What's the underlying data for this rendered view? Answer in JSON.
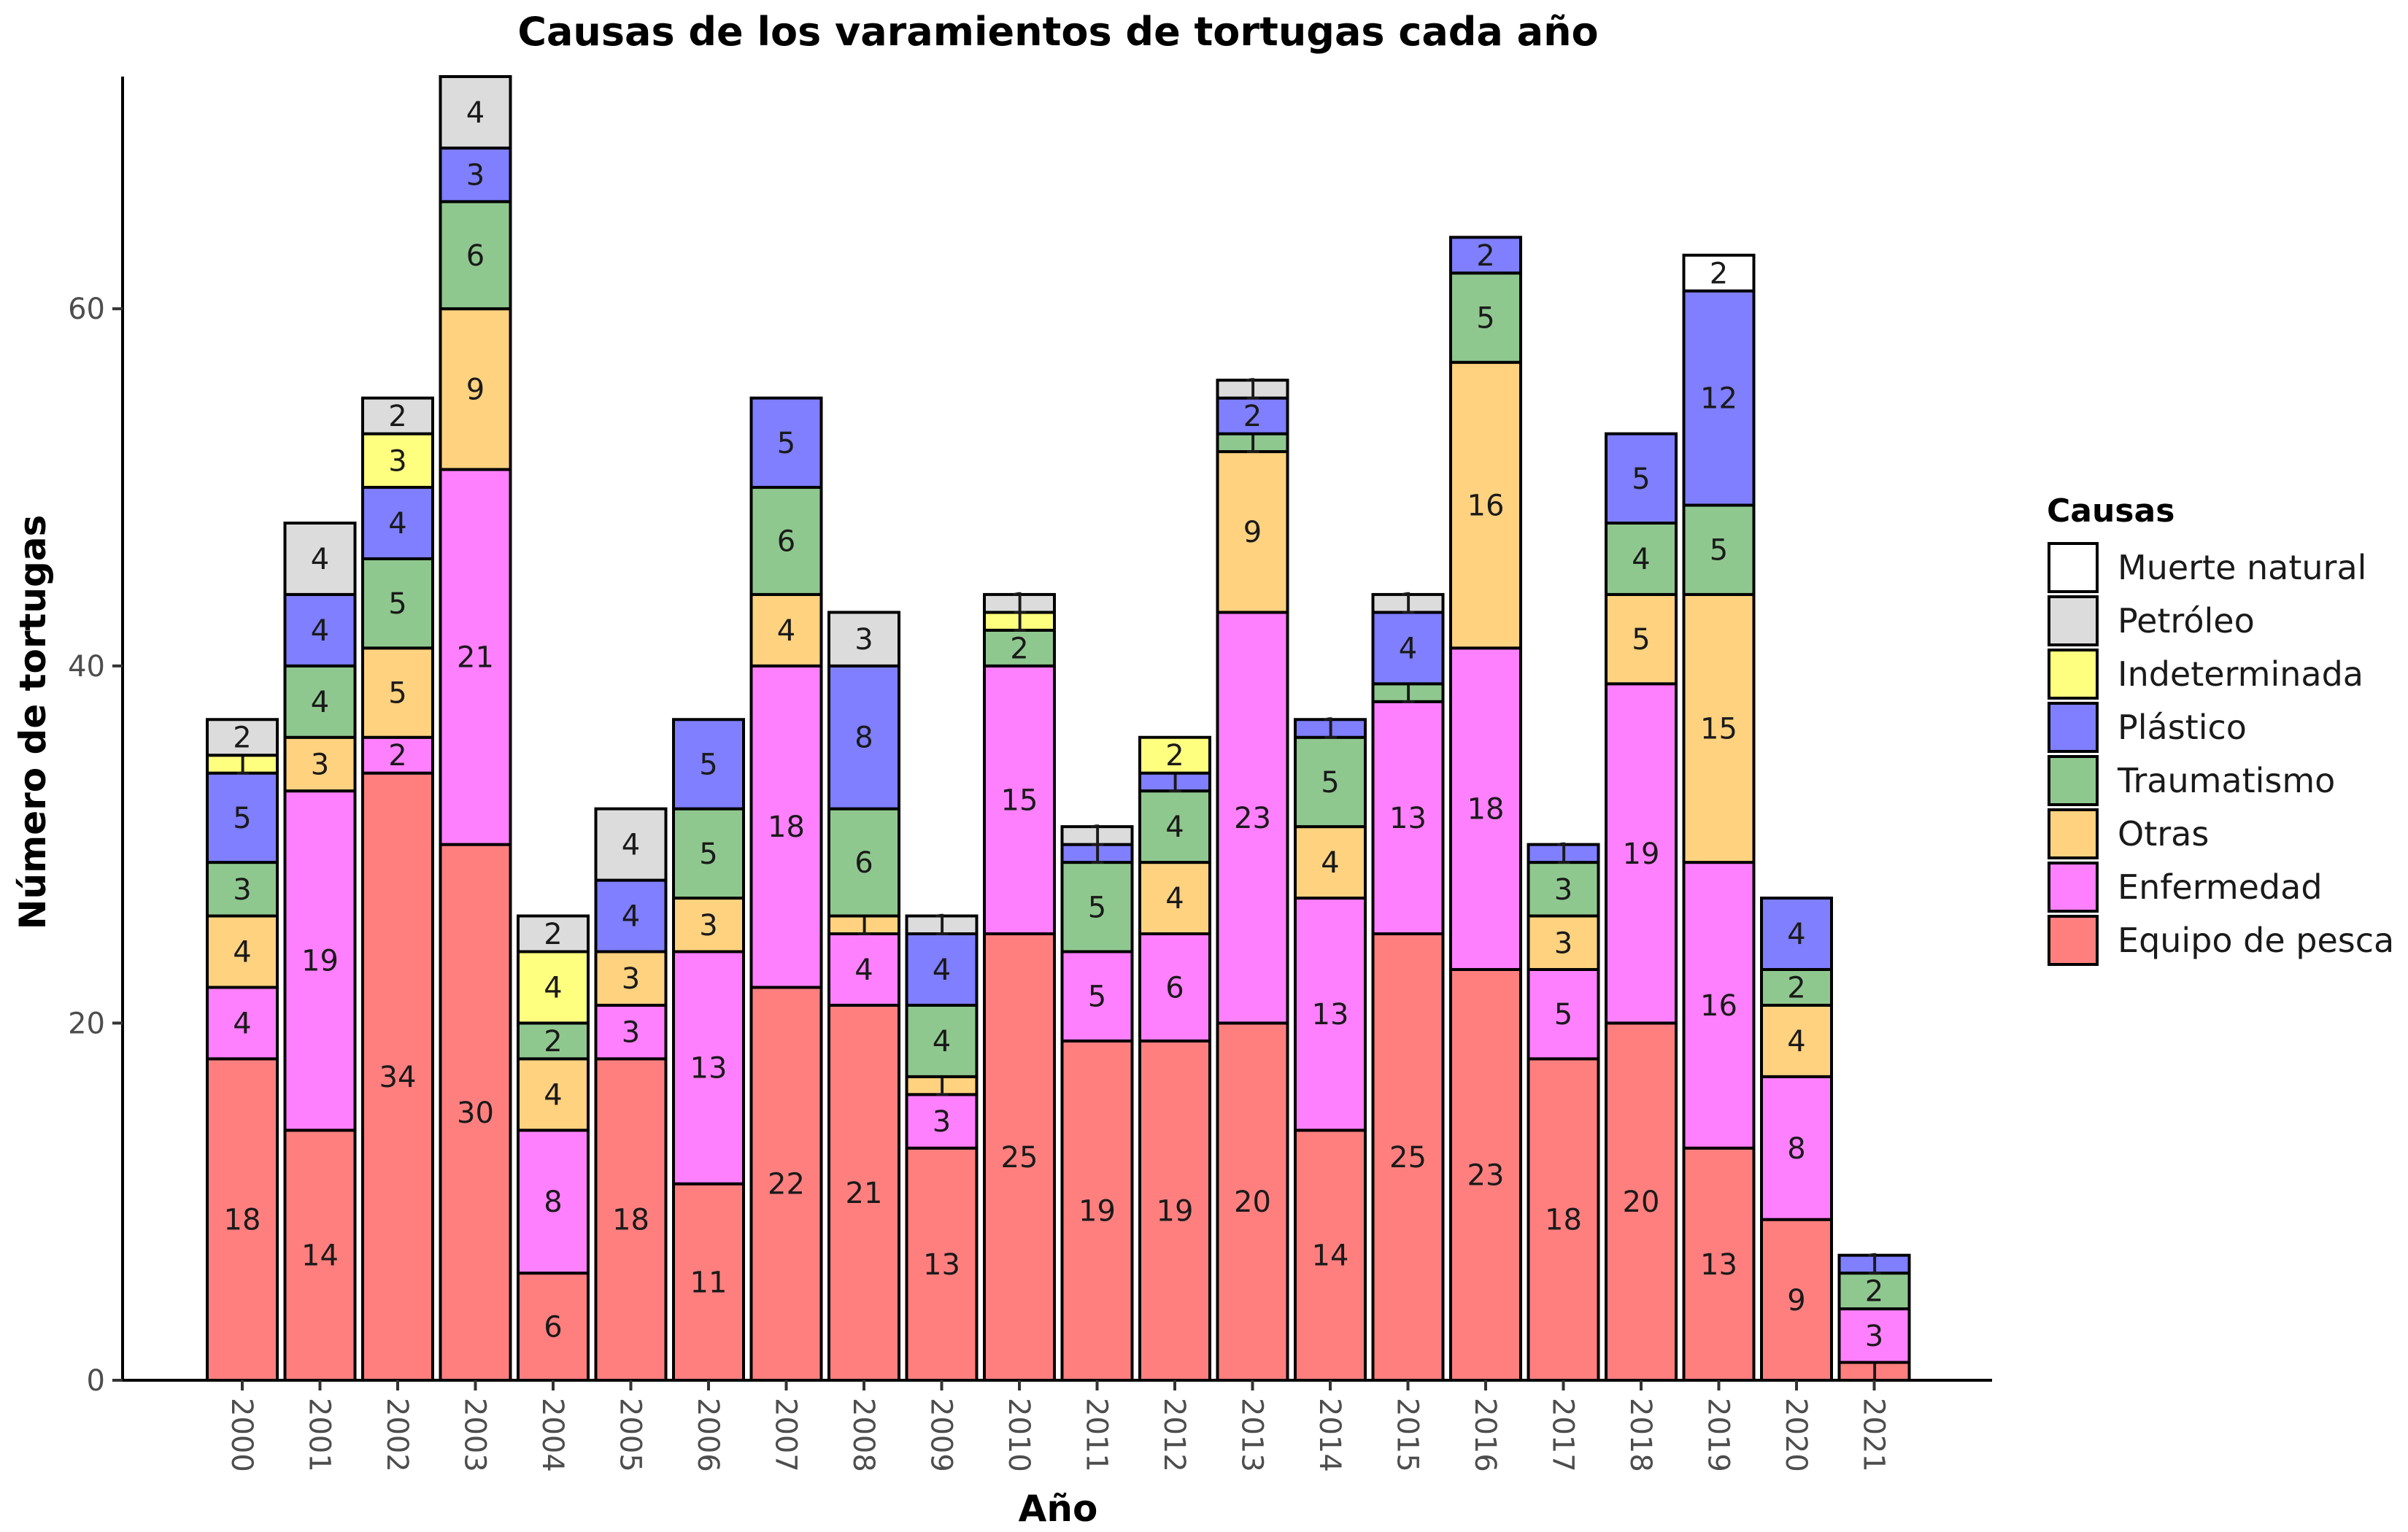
{
  "chart_data": {
    "type": "bar",
    "stacked": true,
    "title": "Causas de los varamientos de tortugas cada año",
    "xlabel": "Año",
    "ylabel": "Número de tortugas",
    "ylim": [
      0,
      73
    ],
    "yticks": [
      0,
      20,
      40,
      60
    ],
    "grid": false,
    "legend_title": "Causas",
    "legend_position": "right",
    "categories": [
      "2000",
      "2001",
      "2002",
      "2003",
      "2004",
      "2005",
      "2006",
      "2007",
      "2008",
      "2009",
      "2010",
      "2011",
      "2012",
      "2013",
      "2014",
      "2015",
      "2016",
      "2017",
      "2018",
      "2019",
      "2020",
      "2021"
    ],
    "series": [
      {
        "name": "Equipo de pesca",
        "color": "#ff7f7f",
        "values": [
          18,
          14,
          34,
          30,
          6,
          18,
          11,
          22,
          21,
          13,
          25,
          19,
          19,
          20,
          14,
          25,
          23,
          18,
          20,
          13,
          9,
          1
        ]
      },
      {
        "name": "Enfermedad",
        "color": "#ff80ff",
        "values": [
          4,
          19,
          2,
          21,
          8,
          3,
          13,
          18,
          4,
          3,
          15,
          5,
          6,
          23,
          13,
          13,
          18,
          5,
          19,
          16,
          8,
          3
        ]
      },
      {
        "name": "Otras",
        "color": "#ffd27f",
        "values": [
          4,
          3,
          5,
          9,
          4,
          3,
          3,
          4,
          1,
          1,
          0,
          0,
          4,
          9,
          4,
          0,
          16,
          3,
          5,
          15,
          4,
          0
        ]
      },
      {
        "name": "Traumatismo",
        "color": "#8fc88f",
        "values": [
          3,
          4,
          5,
          6,
          2,
          0,
          5,
          6,
          6,
          4,
          2,
          5,
          4,
          1,
          5,
          1,
          5,
          3,
          4,
          5,
          2,
          2
        ]
      },
      {
        "name": "Plástico",
        "color": "#7f7fff",
        "values": [
          5,
          4,
          4,
          3,
          0,
          4,
          5,
          5,
          8,
          4,
          0,
          1,
          1,
          2,
          1,
          4,
          2,
          1,
          5,
          12,
          4,
          1
        ]
      },
      {
        "name": "Indeterminada",
        "color": "#ffff7f",
        "values": [
          1,
          0,
          3,
          0,
          4,
          0,
          0,
          0,
          0,
          0,
          1,
          0,
          2,
          0,
          0,
          0,
          0,
          0,
          0,
          0,
          0,
          0
        ]
      },
      {
        "name": "Petróleo",
        "color": "#dcdcdc",
        "values": [
          2,
          4,
          2,
          4,
          2,
          4,
          0,
          0,
          3,
          1,
          1,
          1,
          0,
          1,
          0,
          1,
          0,
          0,
          0,
          0,
          0,
          0
        ]
      },
      {
        "name": "Muerte natural",
        "color": "#ffffff",
        "values": [
          0,
          0,
          0,
          0,
          0,
          0,
          0,
          0,
          0,
          0,
          0,
          0,
          0,
          0,
          0,
          0,
          0,
          0,
          0,
          2,
          0,
          0
        ]
      }
    ],
    "legend_order": [
      "Muerte natural",
      "Petróleo",
      "Indeterminada",
      "Plástico",
      "Traumatismo",
      "Otras",
      "Enfermedad",
      "Equipo de pesca"
    ]
  }
}
